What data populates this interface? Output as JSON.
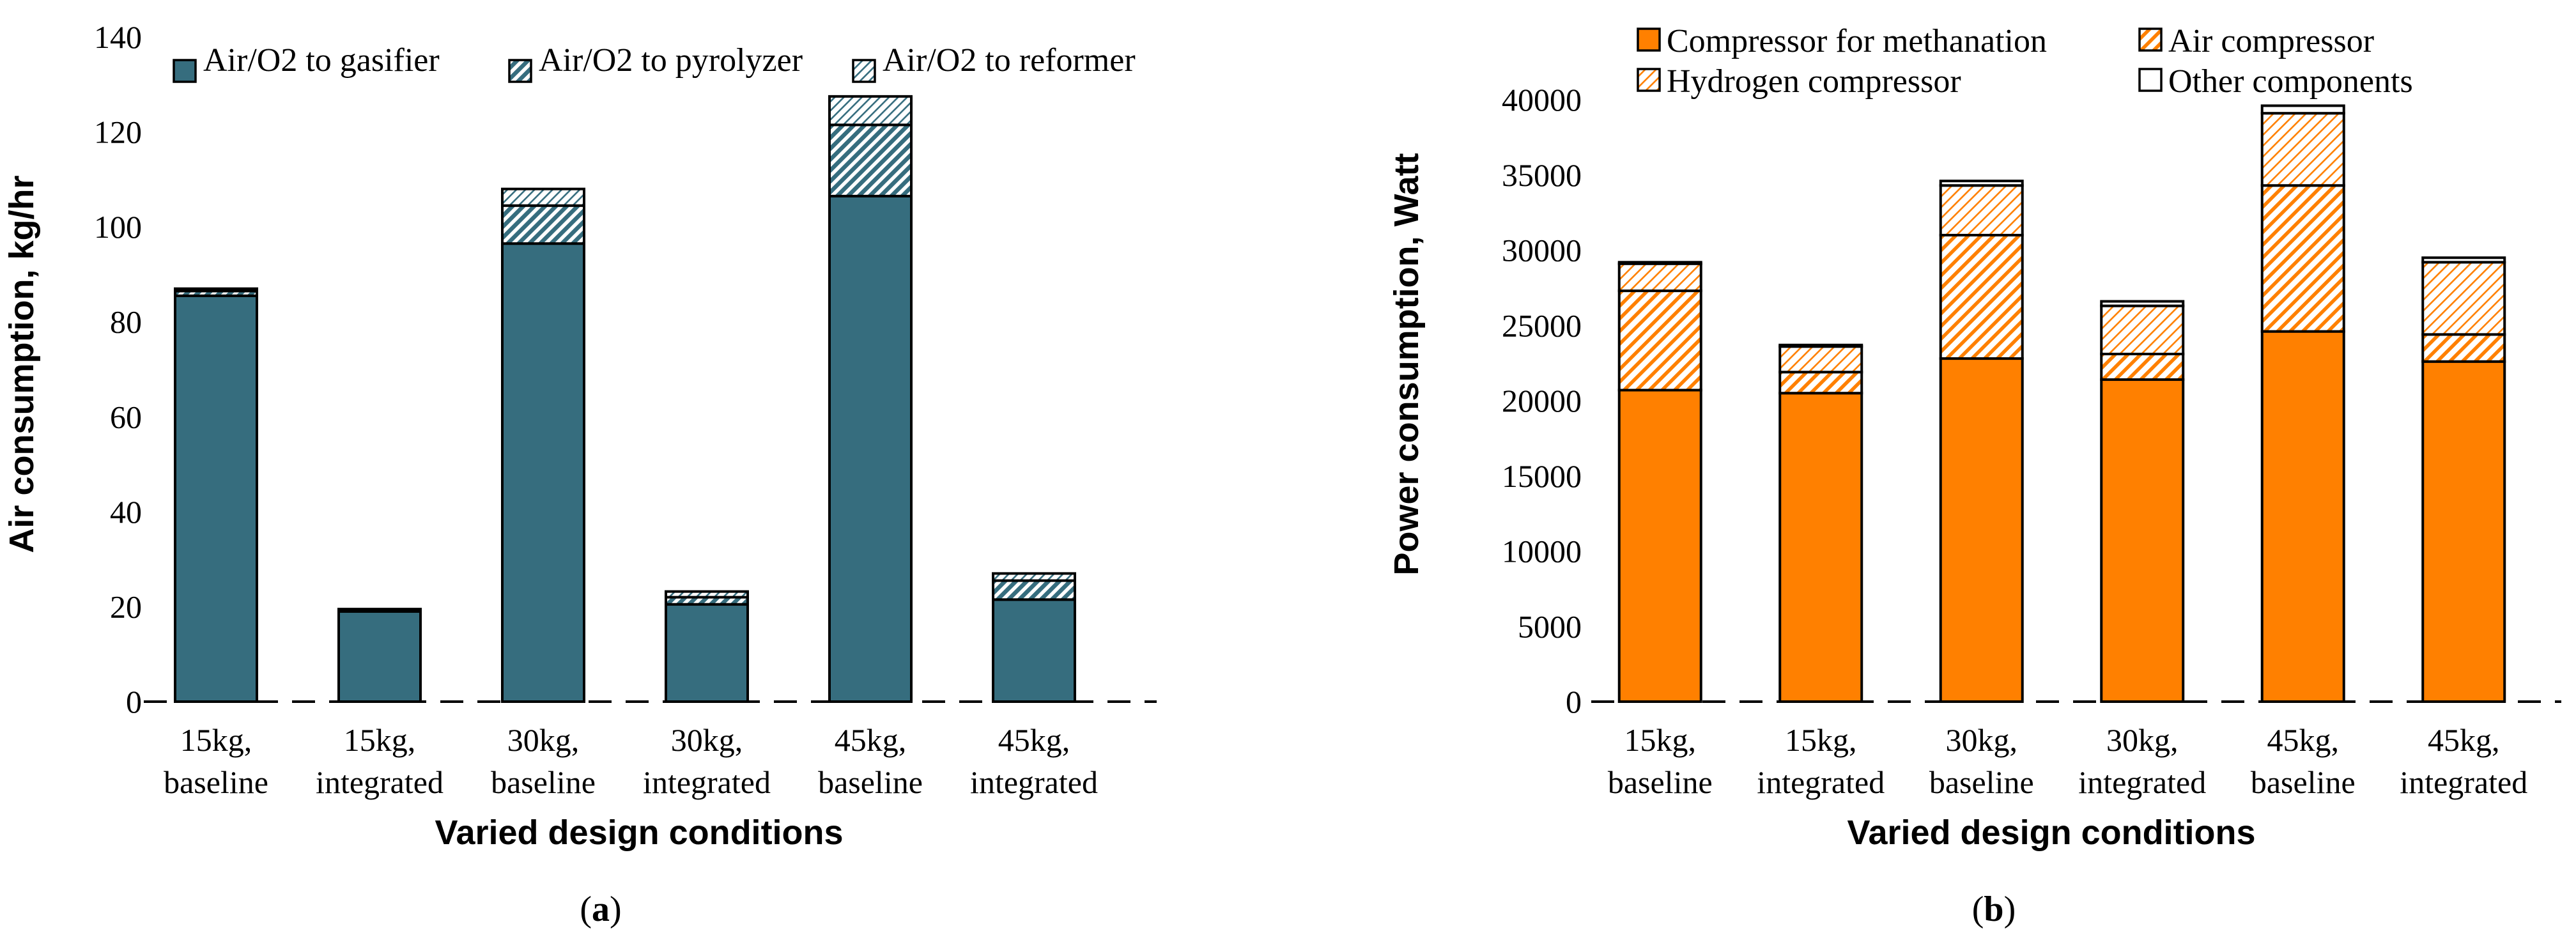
{
  "chart_data": [
    {
      "type": "bar",
      "stacked": true,
      "panel_label": "(a)",
      "panel_letter": "a",
      "ylabel": "Air consumption, kg/hr",
      "xlabel": "Varied design conditions",
      "ylim": [
        0,
        140
      ],
      "yticks": [
        0,
        20,
        40,
        60,
        80,
        100,
        120,
        140
      ],
      "categories": [
        [
          "15kg,",
          "baseline"
        ],
        [
          "15kg,",
          "integrated"
        ],
        [
          "30kg,",
          "baseline"
        ],
        [
          "30kg,",
          "integrated"
        ],
        [
          "45kg,",
          "baseline"
        ],
        [
          "45kg,",
          "integrated"
        ]
      ],
      "series": [
        {
          "name": "Air/O2 to gasifier",
          "pattern": "solid",
          "color": "#366d7e",
          "values": [
            85.5,
            19.0,
            96.5,
            20.5,
            106.5,
            21.5
          ]
        },
        {
          "name": "Air/O2 to pyrolyzer",
          "pattern": "dense-hatch",
          "color": "#366d7e",
          "values": [
            1.0,
            0.3,
            8.0,
            1.5,
            15.0,
            4.0
          ]
        },
        {
          "name": "Air/O2 to reformer",
          "pattern": "light-hatch",
          "color": "#366d7e",
          "values": [
            0.5,
            0.2,
            3.5,
            1.2,
            6.0,
            1.5
          ]
        }
      ],
      "grid": false,
      "legend_position": "top"
    },
    {
      "type": "bar",
      "stacked": true,
      "panel_label": "(b)",
      "panel_letter": "b",
      "ylabel": "Power consumption, Watt",
      "xlabel": "Varied design conditions",
      "ylim": [
        0,
        40000
      ],
      "yticks": [
        0,
        5000,
        10000,
        15000,
        20000,
        25000,
        30000,
        35000,
        40000
      ],
      "categories": [
        [
          "15kg,",
          "baseline"
        ],
        [
          "15kg,",
          "integrated"
        ],
        [
          "30kg,",
          "baseline"
        ],
        [
          "30kg,",
          "integrated"
        ],
        [
          "45kg,",
          "baseline"
        ],
        [
          "45kg,",
          "integrated"
        ]
      ],
      "series": [
        {
          "name": "Compressor for methanation",
          "pattern": "solid",
          "color": "#ff8000",
          "values": [
            20700,
            20500,
            22800,
            21400,
            24600,
            22600
          ]
        },
        {
          "name": "Air compressor",
          "pattern": "dense-hatch",
          "color": "#ff8000",
          "values": [
            6600,
            1400,
            8200,
            1700,
            9700,
            1800
          ]
        },
        {
          "name": "Hydrogen compressor",
          "pattern": "light-hatch",
          "color": "#ff8000",
          "values": [
            1800,
            1700,
            3300,
            3200,
            4800,
            4800
          ]
        },
        {
          "name": "Other components",
          "pattern": "outline",
          "color": "#ffffff",
          "values": [
            100,
            100,
            300,
            300,
            500,
            300
          ]
        }
      ],
      "grid": false,
      "legend_position": "top"
    }
  ]
}
